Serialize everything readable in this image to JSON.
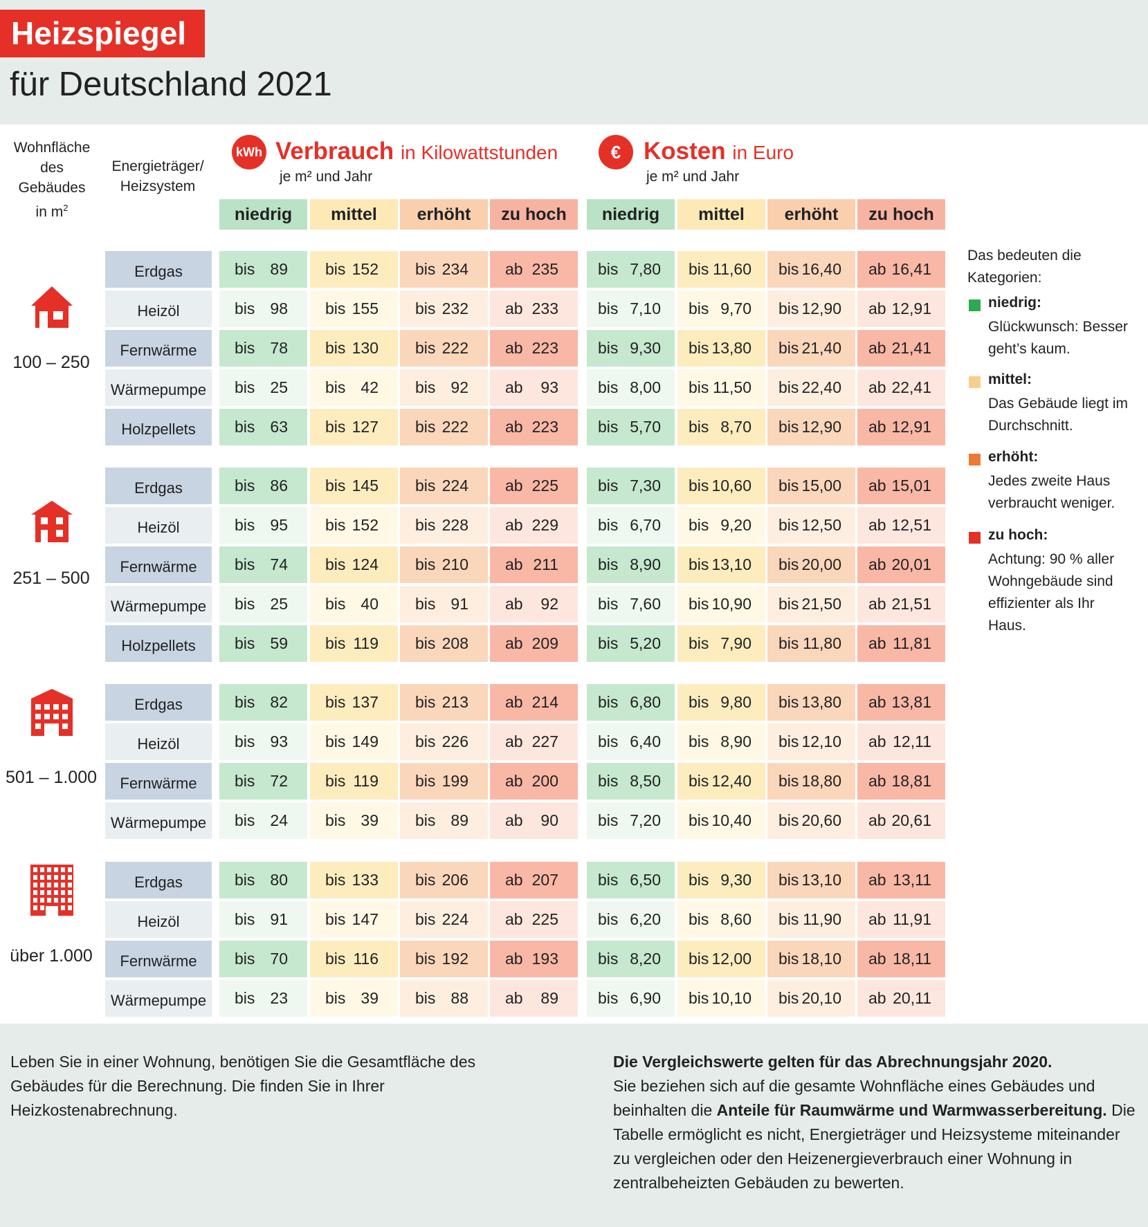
{
  "header": {
    "title": "Heizspiegel",
    "subtitle": "für Deutschland 2021"
  },
  "columns": {
    "area_header": "Wohnfläche des Gebäudes in m²",
    "energy_header": "Energieträger/ Heizsystem",
    "consumption": {
      "icon": "kWh",
      "title": "Verbrauch",
      "unit": "in Kilowattstunden",
      "sub": "je m² und Jahr"
    },
    "cost": {
      "icon": "€",
      "title": "Kosten",
      "unit": "in Euro",
      "sub": "je m² und Jahr"
    },
    "categories": [
      "niedrig",
      "mittel",
      "erhöht",
      "zu hoch"
    ]
  },
  "colors": {
    "red": "#e53027",
    "cat_headers": [
      "#b9e2c6",
      "#fde9b6",
      "#f9cfae",
      "#f7b3a2"
    ],
    "cells_strong": [
      "#c5e8cf",
      "#fdecbe",
      "#fad6bb",
      "#f9b7a6"
    ],
    "cells_light": [
      "#eef8f0",
      "#fff8e5",
      "#fdeedf",
      "#fde6dd"
    ],
    "energy_strong": "#c8d4e2",
    "energy_light": "#e9eef0",
    "legend": [
      "#2eaa4e",
      "#f8ce8e",
      "#ee7a31",
      "#e53027"
    ]
  },
  "groups": [
    {
      "area": "100 – 250",
      "icon": "house-small-icon",
      "rows": [
        {
          "energy": "Erdgas",
          "c": [
            [
              "bis",
              "89"
            ],
            [
              "bis",
              "152"
            ],
            [
              "bis",
              "234"
            ],
            [
              "ab",
              "235"
            ]
          ],
          "k": [
            [
              "bis",
              "7,80"
            ],
            [
              "bis",
              "11,60"
            ],
            [
              "bis",
              "16,40"
            ],
            [
              "ab",
              "16,41"
            ]
          ]
        },
        {
          "energy": "Heizöl",
          "c": [
            [
              "bis",
              "98"
            ],
            [
              "bis",
              "155"
            ],
            [
              "bis",
              "232"
            ],
            [
              "ab",
              "233"
            ]
          ],
          "k": [
            [
              "bis",
              "7,10"
            ],
            [
              "bis",
              "9,70"
            ],
            [
              "bis",
              "12,90"
            ],
            [
              "ab",
              "12,91"
            ]
          ]
        },
        {
          "energy": "Fernwärme",
          "c": [
            [
              "bis",
              "78"
            ],
            [
              "bis",
              "130"
            ],
            [
              "bis",
              "222"
            ],
            [
              "ab",
              "223"
            ]
          ],
          "k": [
            [
              "bis",
              "9,30"
            ],
            [
              "bis",
              "13,80"
            ],
            [
              "bis",
              "21,40"
            ],
            [
              "ab",
              "21,41"
            ]
          ]
        },
        {
          "energy": "Wärmepumpe",
          "c": [
            [
              "bis",
              "25"
            ],
            [
              "bis",
              "42"
            ],
            [
              "bis",
              "92"
            ],
            [
              "ab",
              "93"
            ]
          ],
          "k": [
            [
              "bis",
              "8,00"
            ],
            [
              "bis",
              "11,50"
            ],
            [
              "bis",
              "22,40"
            ],
            [
              "ab",
              "22,41"
            ]
          ]
        },
        {
          "energy": "Holzpellets",
          "c": [
            [
              "bis",
              "63"
            ],
            [
              "bis",
              "127"
            ],
            [
              "bis",
              "222"
            ],
            [
              "ab",
              "223"
            ]
          ],
          "k": [
            [
              "bis",
              "5,70"
            ],
            [
              "bis",
              "8,70"
            ],
            [
              "bis",
              "12,90"
            ],
            [
              "ab",
              "12,91"
            ]
          ]
        }
      ]
    },
    {
      "area": "251 – 500",
      "icon": "house-medium-icon",
      "rows": [
        {
          "energy": "Erdgas",
          "c": [
            [
              "bis",
              "86"
            ],
            [
              "bis",
              "145"
            ],
            [
              "bis",
              "224"
            ],
            [
              "ab",
              "225"
            ]
          ],
          "k": [
            [
              "bis",
              "7,30"
            ],
            [
              "bis",
              "10,60"
            ],
            [
              "bis",
              "15,00"
            ],
            [
              "ab",
              "15,01"
            ]
          ]
        },
        {
          "energy": "Heizöl",
          "c": [
            [
              "bis",
              "95"
            ],
            [
              "bis",
              "152"
            ],
            [
              "bis",
              "228"
            ],
            [
              "ab",
              "229"
            ]
          ],
          "k": [
            [
              "bis",
              "6,70"
            ],
            [
              "bis",
              "9,20"
            ],
            [
              "bis",
              "12,50"
            ],
            [
              "ab",
              "12,51"
            ]
          ]
        },
        {
          "energy": "Fernwärme",
          "c": [
            [
              "bis",
              "74"
            ],
            [
              "bis",
              "124"
            ],
            [
              "bis",
              "210"
            ],
            [
              "ab",
              "211"
            ]
          ],
          "k": [
            [
              "bis",
              "8,90"
            ],
            [
              "bis",
              "13,10"
            ],
            [
              "bis",
              "20,00"
            ],
            [
              "ab",
              "20,01"
            ]
          ]
        },
        {
          "energy": "Wärmepumpe",
          "c": [
            [
              "bis",
              "25"
            ],
            [
              "bis",
              "40"
            ],
            [
              "bis",
              "91"
            ],
            [
              "ab",
              "92"
            ]
          ],
          "k": [
            [
              "bis",
              "7,60"
            ],
            [
              "bis",
              "10,90"
            ],
            [
              "bis",
              "21,50"
            ],
            [
              "ab",
              "21,51"
            ]
          ]
        },
        {
          "energy": "Holzpellets",
          "c": [
            [
              "bis",
              "59"
            ],
            [
              "bis",
              "119"
            ],
            [
              "bis",
              "208"
            ],
            [
              "ab",
              "209"
            ]
          ],
          "k": [
            [
              "bis",
              "5,20"
            ],
            [
              "bis",
              "7,90"
            ],
            [
              "bis",
              "11,80"
            ],
            [
              "ab",
              "11,81"
            ]
          ]
        }
      ]
    },
    {
      "area": "501 – 1.000",
      "icon": "building-icon",
      "rows": [
        {
          "energy": "Erdgas",
          "c": [
            [
              "bis",
              "82"
            ],
            [
              "bis",
              "137"
            ],
            [
              "bis",
              "213"
            ],
            [
              "ab",
              "214"
            ]
          ],
          "k": [
            [
              "bis",
              "6,80"
            ],
            [
              "bis",
              "9,80"
            ],
            [
              "bis",
              "13,80"
            ],
            [
              "ab",
              "13,81"
            ]
          ]
        },
        {
          "energy": "Heizöl",
          "c": [
            [
              "bis",
              "93"
            ],
            [
              "bis",
              "149"
            ],
            [
              "bis",
              "226"
            ],
            [
              "ab",
              "227"
            ]
          ],
          "k": [
            [
              "bis",
              "6,40"
            ],
            [
              "bis",
              "8,90"
            ],
            [
              "bis",
              "12,10"
            ],
            [
              "ab",
              "12,11"
            ]
          ]
        },
        {
          "energy": "Fernwärme",
          "c": [
            [
              "bis",
              "72"
            ],
            [
              "bis",
              "119"
            ],
            [
              "bis",
              "199"
            ],
            [
              "ab",
              "200"
            ]
          ],
          "k": [
            [
              "bis",
              "8,50"
            ],
            [
              "bis",
              "12,40"
            ],
            [
              "bis",
              "18,80"
            ],
            [
              "ab",
              "18,81"
            ]
          ]
        },
        {
          "energy": "Wärmepumpe",
          "c": [
            [
              "bis",
              "24"
            ],
            [
              "bis",
              "39"
            ],
            [
              "bis",
              "89"
            ],
            [
              "ab",
              "90"
            ]
          ],
          "k": [
            [
              "bis",
              "7,20"
            ],
            [
              "bis",
              "10,40"
            ],
            [
              "bis",
              "20,60"
            ],
            [
              "ab",
              "20,61"
            ]
          ]
        }
      ]
    },
    {
      "area": "über 1.000",
      "icon": "highrise-icon",
      "rows": [
        {
          "energy": "Erdgas",
          "c": [
            [
              "bis",
              "80"
            ],
            [
              "bis",
              "133"
            ],
            [
              "bis",
              "206"
            ],
            [
              "ab",
              "207"
            ]
          ],
          "k": [
            [
              "bis",
              "6,50"
            ],
            [
              "bis",
              "9,30"
            ],
            [
              "bis",
              "13,10"
            ],
            [
              "ab",
              "13,11"
            ]
          ]
        },
        {
          "energy": "Heizöl",
          "c": [
            [
              "bis",
              "91"
            ],
            [
              "bis",
              "147"
            ],
            [
              "bis",
              "224"
            ],
            [
              "ab",
              "225"
            ]
          ],
          "k": [
            [
              "bis",
              "6,20"
            ],
            [
              "bis",
              "8,60"
            ],
            [
              "bis",
              "11,90"
            ],
            [
              "ab",
              "11,91"
            ]
          ]
        },
        {
          "energy": "Fernwärme",
          "c": [
            [
              "bis",
              "70"
            ],
            [
              "bis",
              "116"
            ],
            [
              "bis",
              "192"
            ],
            [
              "ab",
              "193"
            ]
          ],
          "k": [
            [
              "bis",
              "8,20"
            ],
            [
              "bis",
              "12,00"
            ],
            [
              "bis",
              "18,10"
            ],
            [
              "ab",
              "18,11"
            ]
          ]
        },
        {
          "energy": "Wärmepumpe",
          "c": [
            [
              "bis",
              "23"
            ],
            [
              "bis",
              "39"
            ],
            [
              "bis",
              "88"
            ],
            [
              "ab",
              "89"
            ]
          ],
          "k": [
            [
              "bis",
              "6,90"
            ],
            [
              "bis",
              "10,10"
            ],
            [
              "bis",
              "20,10"
            ],
            [
              "ab",
              "20,11"
            ]
          ]
        }
      ]
    }
  ],
  "legend": {
    "intro": "Das bedeuten die Kategorien:",
    "items": [
      {
        "title": "niedrig:",
        "desc": "Glückwunsch: Besser geht’s kaum."
      },
      {
        "title": "mittel:",
        "desc": "Das Gebäude liegt im Durchschnitt."
      },
      {
        "title": "erhöht:",
        "desc": "Jedes zweite Haus verbraucht weniger."
      },
      {
        "title": "zu hoch:",
        "desc": "Achtung: 90 % aller Wohngebäude sind effizienter als Ihr Haus."
      }
    ]
  },
  "footer": {
    "left": "Leben Sie in einer Wohnung, benötigen Sie die Gesamtfläche des Gebäudes für die Berechnung. Die finden Sie in Ihrer Heizkostenabrechnung.",
    "right_bold1": "Die Vergleichswerte gelten für das Abrechnungsjahr 2020.",
    "right_text1": "Sie beziehen sich auf die gesamte Wohnfläche eines Gebäudes und beinhalten die",
    "right_bold2": "Anteile für Raumwärme und Warmwasserbereitung.",
    "right_text2": "Die Tabelle ermöglicht es nicht, Energieträger und Heizsysteme miteinander zu vergleichen oder den Heizenergieverbrauch einer Wohnung in zentralbeheizten Gebäuden zu bewerten."
  }
}
